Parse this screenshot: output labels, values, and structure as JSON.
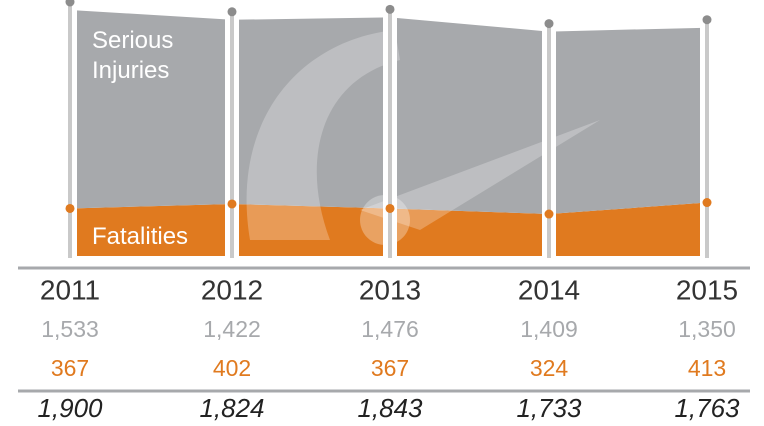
{
  "chart_data": {
    "type": "stacked-area",
    "categories": [
      "2011",
      "2012",
      "2013",
      "2014",
      "2015"
    ],
    "series": [
      {
        "name": "Fatalities",
        "color": "#e07a1f",
        "values": [
          367,
          402,
          367,
          324,
          413
        ]
      },
      {
        "name": "Serious Injuries",
        "color": "#a7a9ac",
        "values": [
          1533,
          1422,
          1476,
          1409,
          1350
        ],
        "value_labels": [
          "1,533",
          "1,422",
          "1,476",
          "1,409",
          "1,350"
        ]
      }
    ],
    "totals": {
      "values": [
        1900,
        1824,
        1843,
        1733,
        1763
      ],
      "value_labels": [
        "1,900",
        "1,824",
        "1,843",
        "1,733",
        "1,763"
      ]
    }
  }
}
